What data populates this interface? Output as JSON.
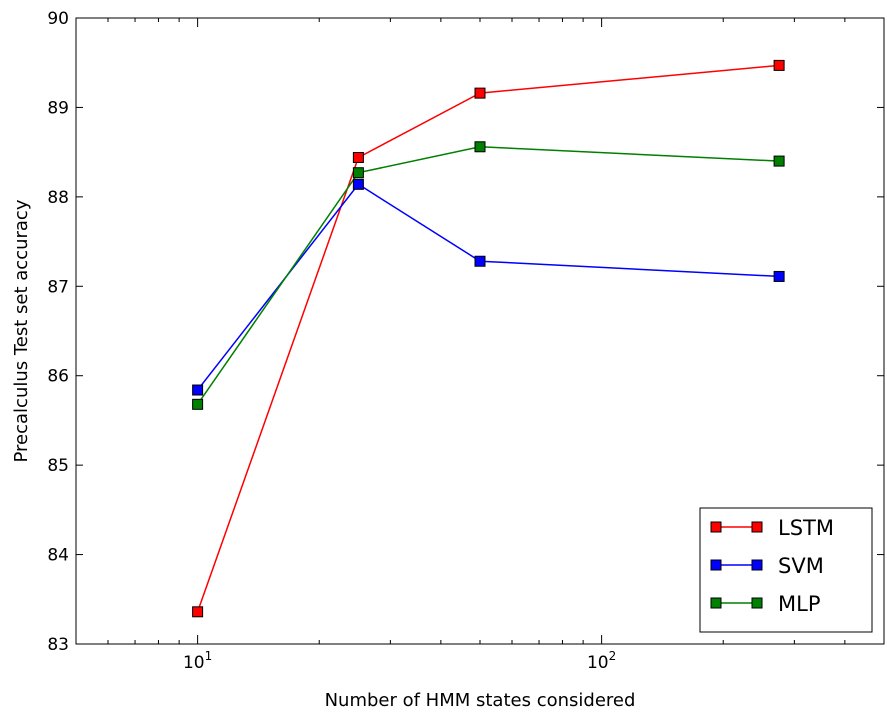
{
  "chart_data": {
    "type": "line",
    "xscale": "log",
    "xlabel": "Number of HMM states considered",
    "ylabel": "Precalculus Test set accuracy",
    "xlim": [
      5,
      500
    ],
    "ylim": [
      83,
      90
    ],
    "yticks": [
      83,
      84,
      85,
      86,
      87,
      88,
      89,
      90
    ],
    "xticks": [
      {
        "value": 10,
        "base": "10",
        "exp": "1"
      },
      {
        "value": 100,
        "base": "10",
        "exp": "2"
      }
    ],
    "x": [
      10,
      25,
      50,
      275
    ],
    "series": [
      {
        "name": "LSTM",
        "color": "#ff0000",
        "values": [
          83.36,
          88.44,
          89.16,
          89.47
        ]
      },
      {
        "name": "SVM",
        "color": "#0000ff",
        "values": [
          85.84,
          88.14,
          87.28,
          87.11
        ]
      },
      {
        "name": "MLP",
        "color": "#008000",
        "values": [
          85.68,
          88.27,
          88.56,
          88.4
        ]
      }
    ],
    "marker": "square",
    "grid": false,
    "legend_position": "bottom-right"
  }
}
